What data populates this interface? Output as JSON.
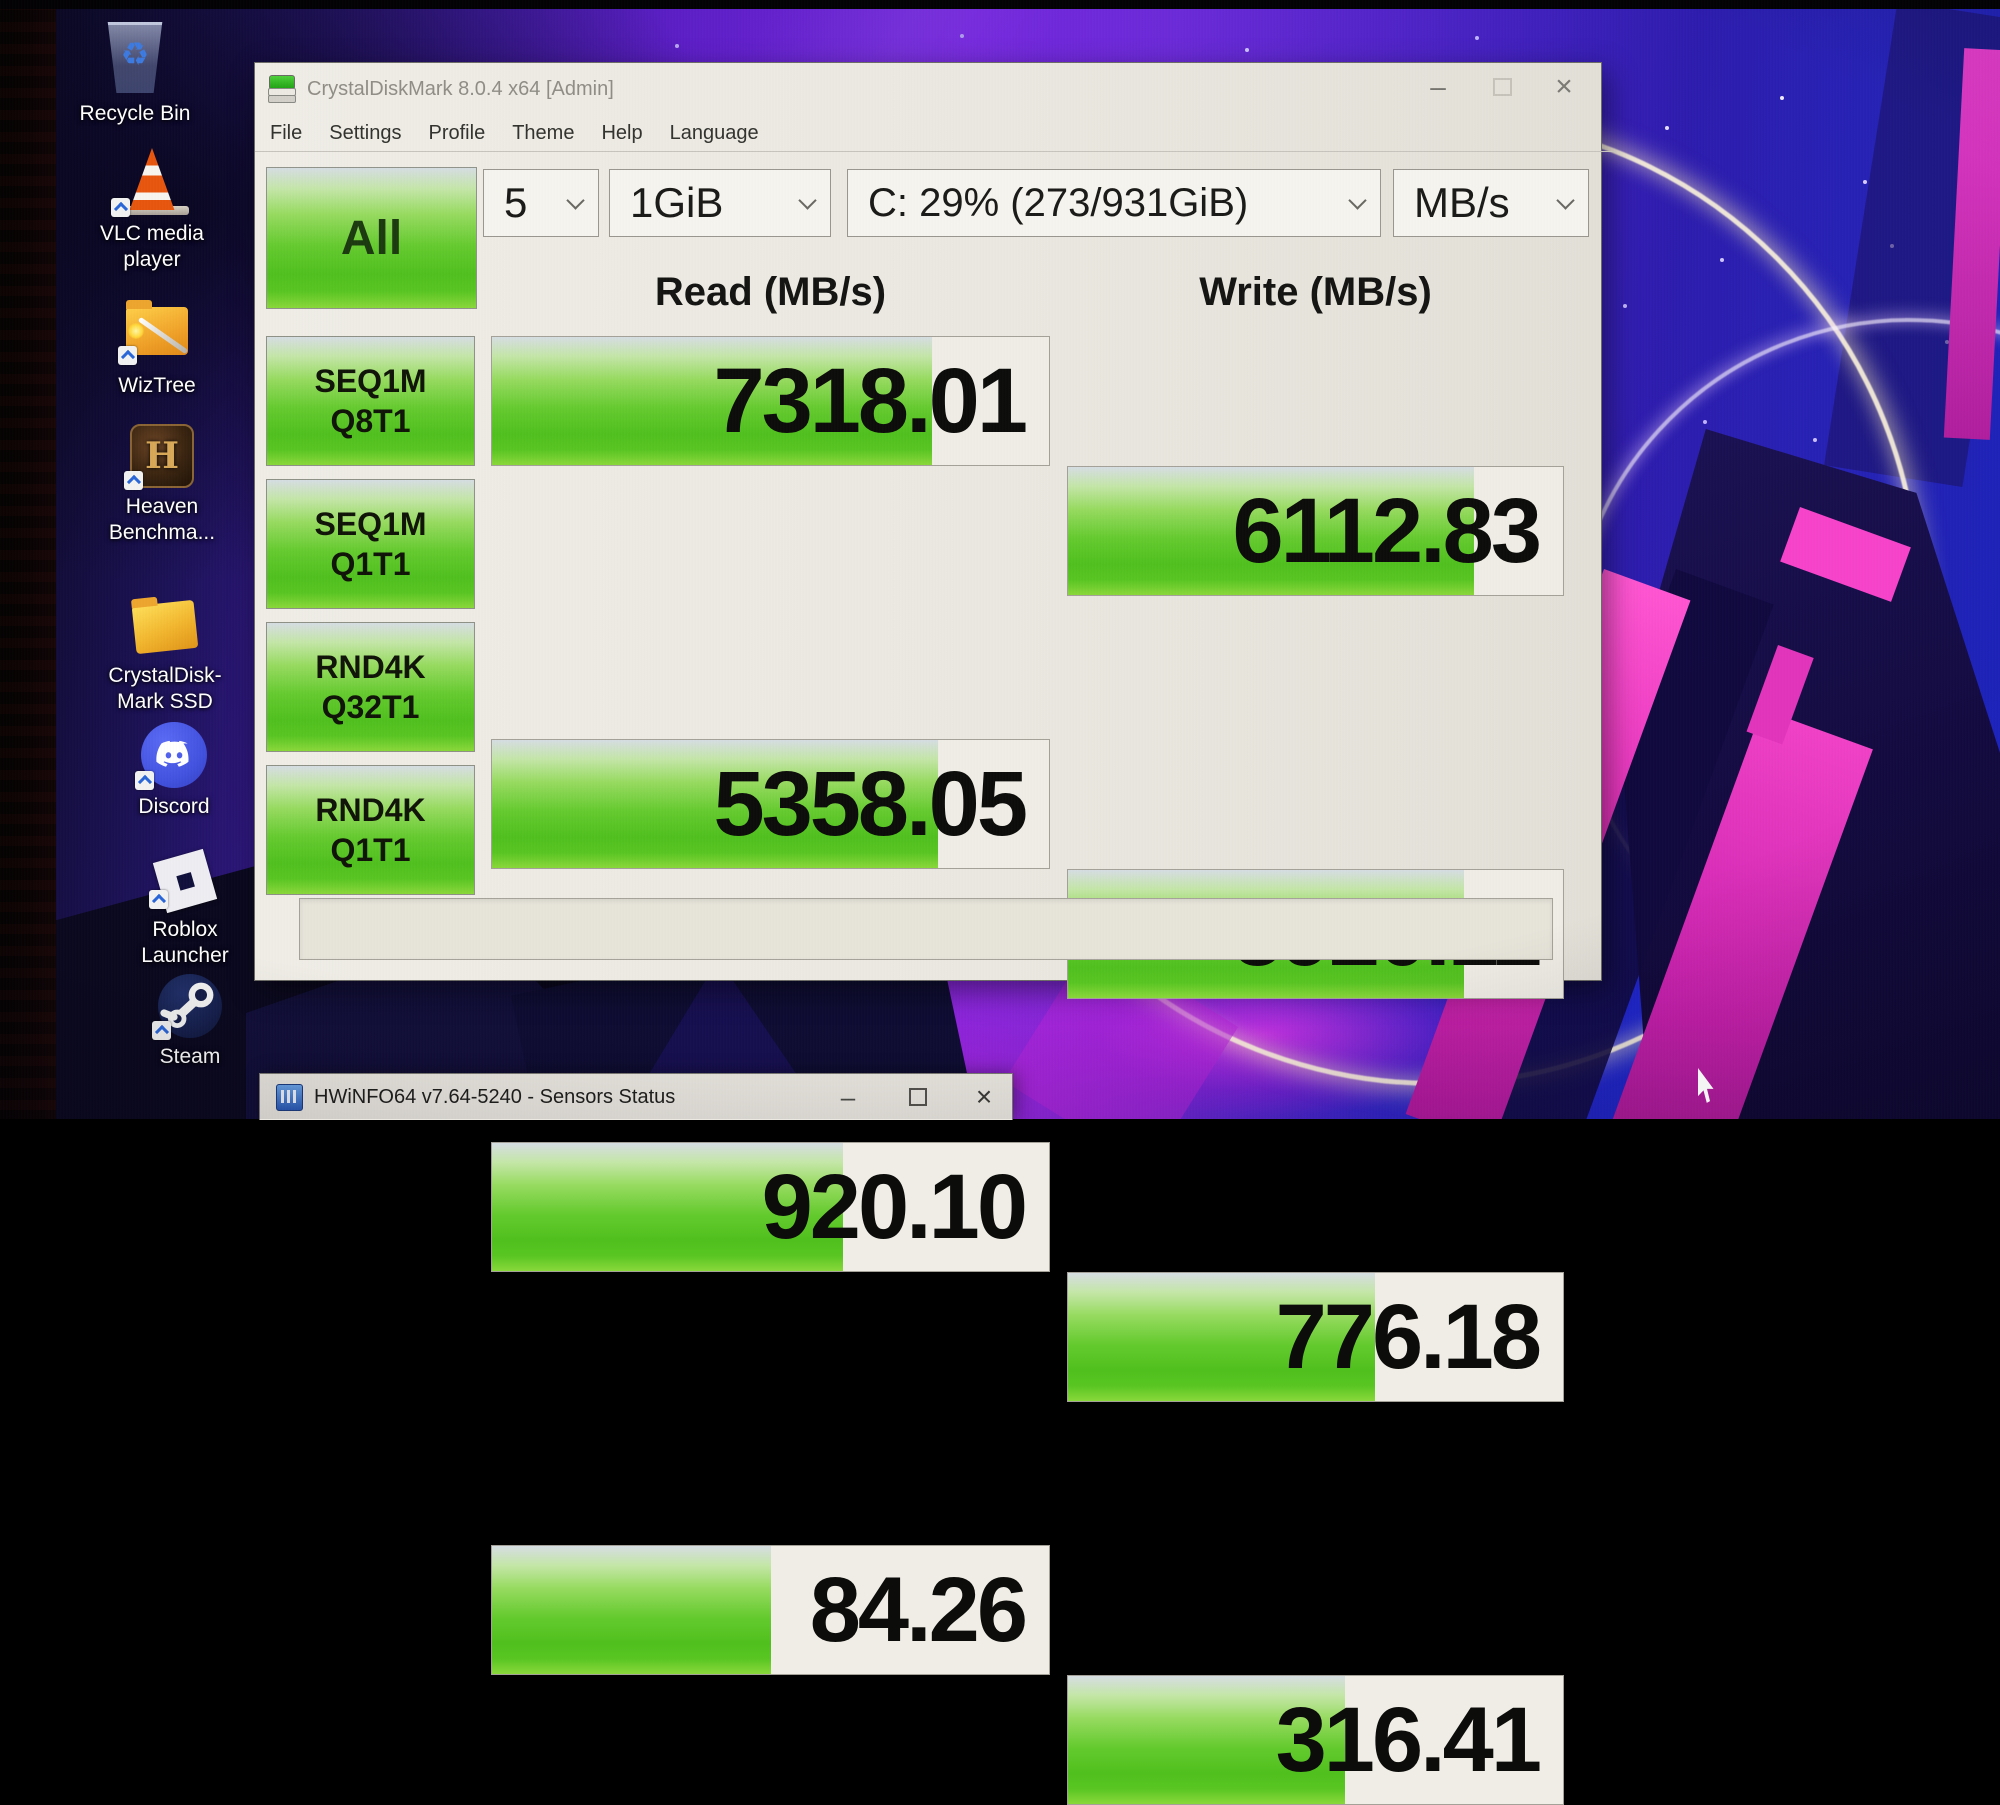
{
  "desktop": {
    "icons": [
      {
        "name": "recycle-bin",
        "lines": [
          "Recycle Bin",
          ""
        ],
        "recycle_glyph": "♻"
      },
      {
        "name": "vlc-media-player",
        "lines": [
          "VLC media",
          "player"
        ]
      },
      {
        "name": "wiztree",
        "lines": [
          "WizTree",
          ""
        ]
      },
      {
        "name": "heaven-benchmark",
        "lines": [
          "Heaven",
          "Benchma..."
        ]
      },
      {
        "name": "crystaldiskmark-ssd",
        "lines": [
          "CrystalDisk-",
          "Mark SSD"
        ]
      },
      {
        "name": "discord",
        "lines": [
          "Discord",
          ""
        ]
      },
      {
        "name": "roblox-launcher",
        "lines": [
          "Roblox",
          "Launcher"
        ]
      },
      {
        "name": "steam",
        "lines": [
          "Steam",
          ""
        ]
      }
    ]
  },
  "cdm": {
    "title": "CrystalDiskMark 8.0.4 x64 [Admin]",
    "window_controls": {
      "minimize": "–",
      "close": "×"
    },
    "menu": [
      "File",
      "Settings",
      "Profile",
      "Theme",
      "Help",
      "Language"
    ],
    "controls": {
      "all": "All",
      "count": "5",
      "size": "1GiB",
      "drive": "C: 29% (273/931GiB)",
      "unit": "MB/s"
    },
    "headers": {
      "read": "Read (MB/s)",
      "write": "Write (MB/s)"
    },
    "rows": [
      {
        "label_top": "SEQ1M",
        "label_bottom": "Q8T1",
        "read": "7318.01",
        "write": "6112.83",
        "read_fill": "79%",
        "write_fill": "82%"
      },
      {
        "label_top": "SEQ1M",
        "label_bottom": "Q1T1",
        "read": "5358.05",
        "write": "5920.11",
        "read_fill": "80%",
        "write_fill": "80%"
      },
      {
        "label_top": "RND4K",
        "label_bottom": "Q32T1",
        "read": "920.10",
        "write": "776.18",
        "read_fill": "63%",
        "write_fill": "62%"
      },
      {
        "label_top": "RND4K",
        "label_bottom": "Q1T1",
        "read": "84.26",
        "write": "316.41",
        "read_fill": "50%",
        "write_fill": "56%"
      }
    ]
  },
  "hwinfo": {
    "title": "HWiNFO64 v7.64-5240 - Sensors Status",
    "window_controls": {
      "minimize": "–",
      "close": "×"
    }
  },
  "colors": {
    "bar_green": "#50c01e",
    "wallpaper_purple": "#7326dc",
    "wallpaper_magenta": "#e02db8",
    "window_bg": "#eae8e0"
  }
}
